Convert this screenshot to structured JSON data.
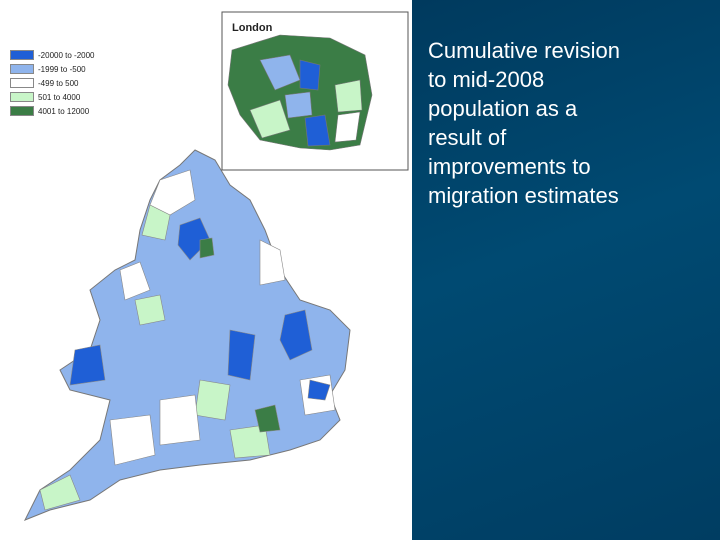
{
  "inset": {
    "title": "London"
  },
  "legend": [
    {
      "label": "-20000 to -2000",
      "color": "#1f5fd6"
    },
    {
      "label": "-1999 to -500",
      "color": "#8fb4ec"
    },
    {
      "label": "-499 to 500",
      "color": "#ffffff"
    },
    {
      "label": "501 to 4000",
      "color": "#c8f5c8"
    },
    {
      "label": "4001 to 12000",
      "color": "#3b7d46"
    }
  ],
  "caption": {
    "lines": [
      "Cumulative revision",
      "to mid-2008",
      "population as a",
      "result of",
      "improvements to",
      "migration estimates"
    ]
  }
}
